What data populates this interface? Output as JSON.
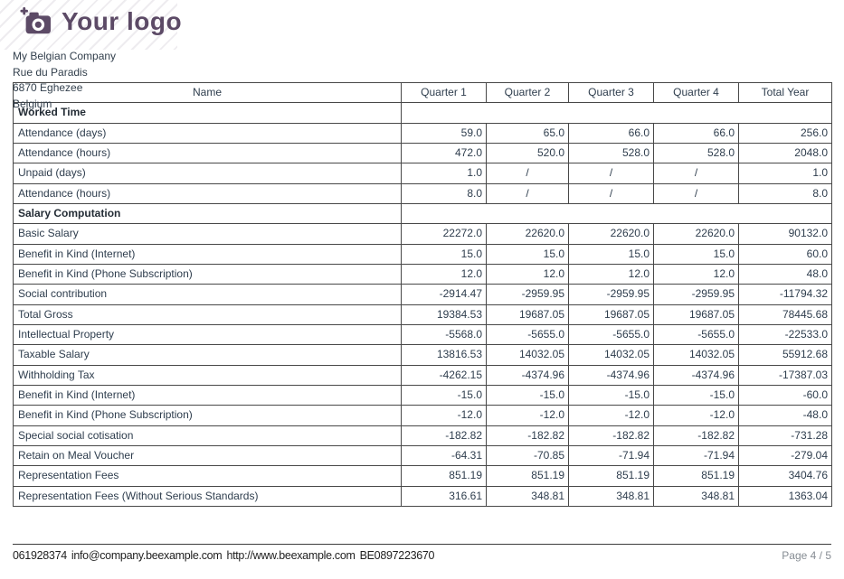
{
  "logo": {
    "text": "Your logo",
    "icon": "camera-icon",
    "color": "#5c4a66"
  },
  "company": {
    "name": "My Belgian Company",
    "street": "Rue du Paradis",
    "city": "6870 Eghezee",
    "country": "Belgium"
  },
  "table": {
    "headers": [
      "Name",
      "Quarter 1",
      "Quarter 2",
      "Quarter 3",
      "Quarter 4",
      "Total Year"
    ],
    "rows": [
      {
        "type": "section",
        "label": "Worked Time"
      },
      {
        "type": "data",
        "label": "Attendance (days)",
        "values": [
          "59.0",
          "65.0",
          "66.0",
          "66.0",
          "256.0"
        ]
      },
      {
        "type": "data",
        "label": "Attendance (hours)",
        "values": [
          "472.0",
          "520.0",
          "528.0",
          "528.0",
          "2048.0"
        ]
      },
      {
        "type": "data",
        "label": "Unpaid (days)",
        "values": [
          "1.0",
          "/",
          "/",
          "/",
          "1.0"
        ]
      },
      {
        "type": "data",
        "label": "Attendance (hours)",
        "values": [
          "8.0",
          "/",
          "/",
          "/",
          "8.0"
        ]
      },
      {
        "type": "section",
        "label": "Salary Computation"
      },
      {
        "type": "data",
        "label": "Basic Salary",
        "values": [
          "22272.0",
          "22620.0",
          "22620.0",
          "22620.0",
          "90132.0"
        ]
      },
      {
        "type": "data",
        "label": "Benefit in Kind (Internet)",
        "values": [
          "15.0",
          "15.0",
          "15.0",
          "15.0",
          "60.0"
        ]
      },
      {
        "type": "data",
        "label": "Benefit in Kind (Phone Subscription)",
        "values": [
          "12.0",
          "12.0",
          "12.0",
          "12.0",
          "48.0"
        ]
      },
      {
        "type": "data",
        "label": "Social contribution",
        "values": [
          "-2914.47",
          "-2959.95",
          "-2959.95",
          "-2959.95",
          "-11794.32"
        ]
      },
      {
        "type": "data",
        "label": "Total Gross",
        "values": [
          "19384.53",
          "19687.05",
          "19687.05",
          "19687.05",
          "78445.68"
        ]
      },
      {
        "type": "data",
        "label": "Intellectual Property",
        "values": [
          "-5568.0",
          "-5655.0",
          "-5655.0",
          "-5655.0",
          "-22533.0"
        ]
      },
      {
        "type": "data",
        "label": "Taxable Salary",
        "values": [
          "13816.53",
          "14032.05",
          "14032.05",
          "14032.05",
          "55912.68"
        ]
      },
      {
        "type": "data",
        "label": "Withholding Tax",
        "values": [
          "-4262.15",
          "-4374.96",
          "-4374.96",
          "-4374.96",
          "-17387.03"
        ]
      },
      {
        "type": "data",
        "label": "Benefit in Kind (Internet)",
        "values": [
          "-15.0",
          "-15.0",
          "-15.0",
          "-15.0",
          "-60.0"
        ]
      },
      {
        "type": "data",
        "label": "Benefit in Kind (Phone Subscription)",
        "values": [
          "-12.0",
          "-12.0",
          "-12.0",
          "-12.0",
          "-48.0"
        ]
      },
      {
        "type": "data",
        "label": "Special social cotisation",
        "values": [
          "-182.82",
          "-182.82",
          "-182.82",
          "-182.82",
          "-731.28"
        ]
      },
      {
        "type": "data",
        "label": "Retain on Meal Voucher",
        "values": [
          "-64.31",
          "-70.85",
          "-71.94",
          "-71.94",
          "-279.04"
        ]
      },
      {
        "type": "data",
        "label": "Representation Fees",
        "values": [
          "851.19",
          "851.19",
          "851.19",
          "851.19",
          "3404.76"
        ]
      },
      {
        "type": "data",
        "label": "Representation Fees (Without Serious Standards)",
        "values": [
          "316.61",
          "348.81",
          "348.81",
          "348.81",
          "1363.04"
        ]
      }
    ]
  },
  "footer": {
    "phone": "061928374",
    "email": "info@company.beexample.com",
    "website": "http://www.beexample.com",
    "vat": "BE0897223670",
    "page": "Page 4 / 5"
  }
}
